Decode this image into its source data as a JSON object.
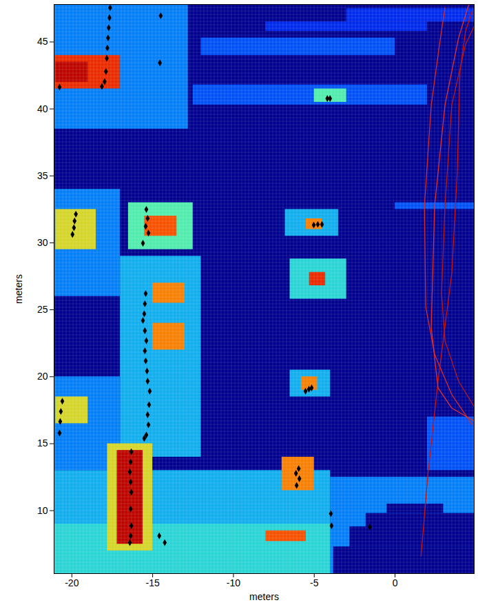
{
  "chart_data": {
    "type": "heatmap",
    "xlabel": "meters",
    "ylabel": "meters",
    "xlim": [
      -21.1,
      4.9
    ],
    "ylim": [
      5.3,
      47.8
    ],
    "xticks": [
      -20,
      -15,
      -10,
      -5,
      0
    ],
    "yticks": [
      10,
      15,
      20,
      25,
      30,
      35,
      40,
      45
    ],
    "cell_range": [
      0,
      1
    ],
    "cells": [
      {
        "x1": -21.1,
        "x2": -12.8,
        "y1": 38.5,
        "y2": 47.8,
        "value": 0.3
      },
      {
        "x1": -21.1,
        "x2": -17.0,
        "y1": 41.5,
        "y2": 44.0,
        "value": 0.8
      },
      {
        "x1": -21.0,
        "x2": -19.0,
        "y1": 42.0,
        "y2": 43.5,
        "value": 0.9
      },
      {
        "x1": -12.0,
        "x2": 0.0,
        "y1": 44.0,
        "y2": 45.3,
        "value": 0.25
      },
      {
        "x1": -8.0,
        "x2": 2.0,
        "y1": 45.8,
        "y2": 46.5,
        "value": 0.2
      },
      {
        "x1": -3.0,
        "x2": 4.9,
        "y1": 46.5,
        "y2": 47.5,
        "value": 0.2
      },
      {
        "x1": -12.5,
        "x2": 2.0,
        "y1": 40.3,
        "y2": 41.8,
        "value": 0.25
      },
      {
        "x1": -5.0,
        "x2": -3.0,
        "y1": 40.5,
        "y2": 41.5,
        "value": 0.45
      },
      {
        "x1": 0.0,
        "x2": 4.9,
        "y1": 32.5,
        "y2": 33.0,
        "value": 0.25
      },
      {
        "x1": -21.1,
        "x2": -17.0,
        "y1": 26.0,
        "y2": 34.0,
        "value": 0.3
      },
      {
        "x1": -21.0,
        "x2": -18.5,
        "y1": 29.5,
        "y2": 32.5,
        "value": 0.6
      },
      {
        "x1": -16.5,
        "x2": -12.5,
        "y1": 29.5,
        "y2": 33.0,
        "value": 0.45
      },
      {
        "x1": -15.5,
        "x2": -13.5,
        "y1": 30.5,
        "y2": 32.0,
        "value": 0.75
      },
      {
        "x1": -17.0,
        "x2": -12.0,
        "y1": 14.0,
        "y2": 29.0,
        "value": 0.35
      },
      {
        "x1": -21.1,
        "x2": -17.0,
        "y1": 13.0,
        "y2": 20.0,
        "value": 0.3
      },
      {
        "x1": -15.0,
        "x2": -13.0,
        "y1": 25.5,
        "y2": 27.0,
        "value": 0.7
      },
      {
        "x1": -15.0,
        "x2": -13.0,
        "y1": 22.0,
        "y2": 24.0,
        "value": 0.7
      },
      {
        "x1": -21.0,
        "x2": -19.0,
        "y1": 16.5,
        "y2": 18.5,
        "value": 0.6
      },
      {
        "x1": -6.8,
        "x2": -3.5,
        "y1": 30.5,
        "y2": 32.5,
        "value": 0.35
      },
      {
        "x1": -5.5,
        "x2": -4.5,
        "y1": 31.0,
        "y2": 31.8,
        "value": 0.7
      },
      {
        "x1": -6.5,
        "x2": -3.0,
        "y1": 25.8,
        "y2": 28.8,
        "value": 0.4
      },
      {
        "x1": -5.3,
        "x2": -4.3,
        "y1": 26.8,
        "y2": 27.8,
        "value": 0.8
      },
      {
        "x1": -6.5,
        "x2": -4.0,
        "y1": 18.5,
        "y2": 20.5,
        "value": 0.35
      },
      {
        "x1": -5.8,
        "x2": -4.8,
        "y1": 19.0,
        "y2": 20.0,
        "value": 0.7
      },
      {
        "x1": -21.1,
        "x2": -4.0,
        "y1": 5.3,
        "y2": 13.0,
        "value": 0.35
      },
      {
        "x1": -21.1,
        "x2": -3.5,
        "y1": 5.3,
        "y2": 9.0,
        "value": 0.4
      },
      {
        "x1": -17.8,
        "x2": -15.0,
        "y1": 7.0,
        "y2": 15.0,
        "value": 0.6
      },
      {
        "x1": -17.2,
        "x2": -15.6,
        "y1": 7.5,
        "y2": 14.5,
        "value": 0.9
      },
      {
        "x1": -7.0,
        "x2": -5.0,
        "y1": 11.5,
        "y2": 14.0,
        "value": 0.7
      },
      {
        "x1": -8.0,
        "x2": -5.5,
        "y1": 7.7,
        "y2": 8.5,
        "value": 0.75
      },
      {
        "x1": -4.0,
        "x2": 4.9,
        "y1": 5.3,
        "y2": 12.5,
        "value": 0.3
      },
      {
        "x1": 2.0,
        "x2": 4.9,
        "y1": 13.0,
        "y2": 17.0,
        "value": 0.25
      },
      {
        "x1": -3.8,
        "x2": 4.9,
        "y1": 5.3,
        "y2": 7.3,
        "value": 0
      },
      {
        "x1": -2.8,
        "x2": 4.9,
        "y1": 7.3,
        "y2": 8.8,
        "value": 0
      },
      {
        "x1": -1.8,
        "x2": 4.9,
        "y1": 8.8,
        "y2": 9.8,
        "value": 0
      },
      {
        "x1": -0.5,
        "x2": 3.0,
        "y1": 9.8,
        "y2": 10.5,
        "value": 0
      }
    ],
    "points": {
      "color": "#000000",
      "marker": "diamond",
      "x": [
        -17.63,
        -17.67,
        -17.72,
        -17.76,
        -17.8,
        -17.84,
        -17.89,
        -17.97,
        -18.14,
        -20.76,
        -14.5,
        -14.55,
        -4.02,
        -4.19,
        -19.75,
        -19.83,
        -19.87,
        -19.96,
        -15.39,
        -15.31,
        -15.43,
        -15.26,
        -15.6,
        -5.03,
        -4.78,
        -4.52,
        -15.43,
        -15.48,
        -15.52,
        -15.6,
        -15.48,
        -15.39,
        -15.48,
        -15.43,
        -15.35,
        -15.31,
        -15.18,
        -15.22,
        -15.31,
        -15.26,
        -15.39,
        -15.52,
        -20.59,
        -20.68,
        -20.72,
        -20.76,
        -16.32,
        -16.36,
        -16.41,
        -16.36,
        -16.32,
        -16.36,
        -16.32,
        -16.36,
        -16.41,
        -14.59,
        -14.25,
        -5.54,
        -5.33,
        -5.16,
        -6.13,
        -5.92,
        -6.09,
        -5.96,
        -3.97,
        -3.93,
        -1.56
      ],
      "y": [
        47.56,
        46.81,
        46.06,
        45.3,
        44.55,
        43.79,
        42.79,
        42.04,
        41.68,
        41.63,
        46.96,
        43.44,
        40.78,
        40.78,
        32.14,
        31.63,
        31.13,
        30.63,
        32.49,
        31.83,
        31.23,
        30.73,
        29.97,
        31.33,
        31.38,
        31.38,
        26.21,
        25.45,
        24.7,
        24.2,
        23.44,
        22.69,
        21.93,
        21.18,
        20.43,
        19.67,
        18.92,
        17.91,
        17.16,
        16.41,
        15.65,
        15.4,
        18.17,
        17.41,
        16.66,
        15.8,
        14.4,
        13.64,
        12.89,
        12.14,
        11.38,
        10.13,
        8.87,
        8.12,
        7.61,
        8.12,
        7.61,
        18.92,
        19.07,
        19.17,
        12.79,
        12.39,
        11.88,
        13.14,
        9.77,
        8.87,
        8.77
      ]
    },
    "lines": [
      {
        "color": "#cc1111",
        "x": [
          1.61,
          2.03,
          2.66,
          3.51,
          3.85,
          4.02,
          4.36,
          4.78
        ],
        "y": [
          6.61,
          12.64,
          19.67,
          27.71,
          35.25,
          42.79,
          45.8,
          47.31
        ]
      },
      {
        "color": "#d42a2a",
        "x": [
          3.09,
          2.75,
          2.24,
          1.82,
          1.9,
          2.45,
          3.51,
          4.78
        ],
        "y": [
          47.56,
          44.8,
          40.28,
          32.74,
          25.2,
          21.68,
          18.67,
          16.41
        ]
      },
      {
        "color": "#b81818",
        "x": [
          4.95,
          4.36,
          3.51,
          3.09,
          2.88,
          3.09,
          3.93,
          4.95
        ],
        "y": [
          46.31,
          44.8,
          40.28,
          32.74,
          26.21,
          22.69,
          19.67,
          17.66
        ]
      },
      {
        "color": "#e03030",
        "x": [
          4.95,
          3.51,
          2.66,
          2.24,
          2.45,
          3.09,
          3.93,
          4.57
        ],
        "y": [
          16.66,
          17.66,
          19.17,
          23.69,
          32.74,
          40.28,
          45.3,
          47.81
        ]
      }
    ]
  }
}
